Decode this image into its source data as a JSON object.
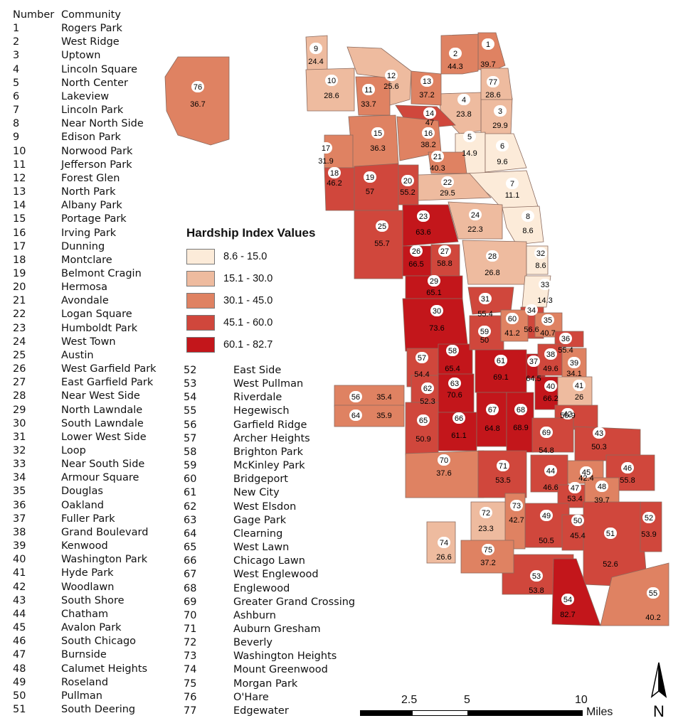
{
  "header": {
    "number": "Number",
    "community": "Community"
  },
  "communities": [
    {
      "number": "1",
      "name": "Rogers Park",
      "value": "39.7"
    },
    {
      "number": "2",
      "name": "West Ridge",
      "value": "44.3"
    },
    {
      "number": "3",
      "name": "Uptown",
      "value": "29.9"
    },
    {
      "number": "4",
      "name": "Lincoln Square",
      "value": "23.8"
    },
    {
      "number": "5",
      "name": "North Center",
      "value": "14.9"
    },
    {
      "number": "6",
      "name": "Lakeview",
      "value": "9.6"
    },
    {
      "number": "7",
      "name": "Lincoln Park",
      "value": "11.1"
    },
    {
      "number": "8",
      "name": "Near North Side",
      "value": "8.6"
    },
    {
      "number": "9",
      "name": "Edison Park",
      "value": "24.4"
    },
    {
      "number": "10",
      "name": "Norwood Park",
      "value": "28.6"
    },
    {
      "number": "11",
      "name": "Jefferson Park",
      "value": "33.7"
    },
    {
      "number": "12",
      "name": "Forest Glen",
      "value": "25.6"
    },
    {
      "number": "13",
      "name": "North Park",
      "value": "37.2"
    },
    {
      "number": "14",
      "name": "Albany Park",
      "value": "47"
    },
    {
      "number": "15",
      "name": "Portage Park",
      "value": "36.3"
    },
    {
      "number": "16",
      "name": "Irving Park",
      "value": "38.2"
    },
    {
      "number": "17",
      "name": "Dunning",
      "value": "31.9"
    },
    {
      "number": "18",
      "name": "Montclare",
      "value": "46.2"
    },
    {
      "number": "19",
      "name": "Belmont Cragin",
      "value": "57"
    },
    {
      "number": "20",
      "name": "Hermosa",
      "value": "55.2"
    },
    {
      "number": "21",
      "name": "Avondale",
      "value": "40.3"
    },
    {
      "number": "22",
      "name": "Logan Square",
      "value": "29.5"
    },
    {
      "number": "23",
      "name": "Humboldt Park",
      "value": "63.6"
    },
    {
      "number": "24",
      "name": "West Town",
      "value": "22.3"
    },
    {
      "number": "25",
      "name": "Austin",
      "value": "55.7"
    },
    {
      "number": "26",
      "name": "West Garfield Park",
      "value": "66.5"
    },
    {
      "number": "27",
      "name": "East Garfield Park",
      "value": "58.8"
    },
    {
      "number": "28",
      "name": "Near West Side",
      "value": "26.8"
    },
    {
      "number": "29",
      "name": "North Lawndale",
      "value": "65.1"
    },
    {
      "number": "30",
      "name": "South Lawndale",
      "value": "73.6"
    },
    {
      "number": "31",
      "name": "Lower West Side",
      "value": "55.4"
    },
    {
      "number": "32",
      "name": "Loop",
      "value": "8.6"
    },
    {
      "number": "33",
      "name": "Near South Side",
      "value": "14.3"
    },
    {
      "number": "34",
      "name": "Armour Square",
      "value": "56.6"
    },
    {
      "number": "35",
      "name": "Douglas",
      "value": "40.7"
    },
    {
      "number": "36",
      "name": "Oakland",
      "value": "55.4"
    },
    {
      "number": "37",
      "name": "Fuller Park",
      "value": "64.5"
    },
    {
      "number": "38",
      "name": "Grand Boulevard",
      "value": "49.6"
    },
    {
      "number": "39",
      "name": "Kenwood",
      "value": "34.1"
    },
    {
      "number": "40",
      "name": "Washington Park",
      "value": "66.2"
    },
    {
      "number": "41",
      "name": "Hyde Park",
      "value": "26"
    },
    {
      "number": "42",
      "name": "Woodlawn",
      "value": "50.9"
    },
    {
      "number": "43",
      "name": "South Shore",
      "value": "50.3"
    },
    {
      "number": "44",
      "name": "Chatham",
      "value": "46.6"
    },
    {
      "number": "45",
      "name": "Avalon Park",
      "value": "42.4"
    },
    {
      "number": "46",
      "name": "South Chicago",
      "value": "55.8"
    },
    {
      "number": "47",
      "name": "Burnside",
      "value": "53.4"
    },
    {
      "number": "48",
      "name": "Calumet Heights",
      "value": "39.7"
    },
    {
      "number": "49",
      "name": "Roseland",
      "value": "50.5"
    },
    {
      "number": "50",
      "name": "Pullman",
      "value": "45.4"
    },
    {
      "number": "51",
      "name": "South Deering",
      "value": "52.6"
    },
    {
      "number": "52",
      "name": "East Side",
      "value": "53.9"
    },
    {
      "number": "53",
      "name": "West Pullman",
      "value": "53.8"
    },
    {
      "number": "54",
      "name": "Riverdale",
      "value": "82.7"
    },
    {
      "number": "55",
      "name": "Hegewisch",
      "value": "40.2"
    },
    {
      "number": "56",
      "name": "Garfield Ridge",
      "value": "35.4"
    },
    {
      "number": "57",
      "name": "Archer Heights",
      "value": "54.4"
    },
    {
      "number": "58",
      "name": "Brighton Park",
      "value": "65.4"
    },
    {
      "number": "59",
      "name": "McKinley Park",
      "value": "50"
    },
    {
      "number": "60",
      "name": "Bridgeport",
      "value": "41.2"
    },
    {
      "number": "61",
      "name": "New City",
      "value": "69.1"
    },
    {
      "number": "62",
      "name": "West Elsdon",
      "value": "52.3"
    },
    {
      "number": "63",
      "name": "Gage Park",
      "value": "70.6"
    },
    {
      "number": "64",
      "name": "Clearning",
      "value": "35.9"
    },
    {
      "number": "65",
      "name": "West Lawn",
      "value": "50.9"
    },
    {
      "number": "66",
      "name": "Chicago Lawn",
      "value": "61.1"
    },
    {
      "number": "67",
      "name": "West Englewood",
      "value": "64.8"
    },
    {
      "number": "68",
      "name": "Englewood",
      "value": "68.9"
    },
    {
      "number": "69",
      "name": "Greater Grand Crossing",
      "value": "54.8"
    },
    {
      "number": "70",
      "name": "Ashburn",
      "value": "37.6"
    },
    {
      "number": "71",
      "name": "Auburn Gresham",
      "value": "53.5"
    },
    {
      "number": "72",
      "name": "Beverly",
      "value": "23.3"
    },
    {
      "number": "73",
      "name": "Washington Heights",
      "value": "42.7"
    },
    {
      "number": "74",
      "name": "Mount Greenwood",
      "value": "26.6"
    },
    {
      "number": "75",
      "name": "Morgan Park",
      "value": "37.2"
    },
    {
      "number": "76",
      "name": "O'Hare",
      "value": "36.7"
    },
    {
      "number": "77",
      "name": "Edgewater",
      "value": "28.6"
    }
  ],
  "legend": {
    "title": "Hardship Index Values",
    "classes": [
      {
        "label": "8.6 - 15.0",
        "color": "#fcebd9"
      },
      {
        "label": "15.1 - 30.0",
        "color": "#eebb9f"
      },
      {
        "label": "30.1 - 45.0",
        "color": "#df8262"
      },
      {
        "label": "45.1 - 60.0",
        "color": "#d0473c"
      },
      {
        "label": "60.1 - 82.7",
        "color": "#c3161b"
      }
    ]
  },
  "scale": {
    "labels": [
      "2.5",
      "5",
      "10"
    ],
    "unit": "Miles"
  },
  "north": {
    "label": "N",
    "icon": "north-arrow-icon"
  }
}
